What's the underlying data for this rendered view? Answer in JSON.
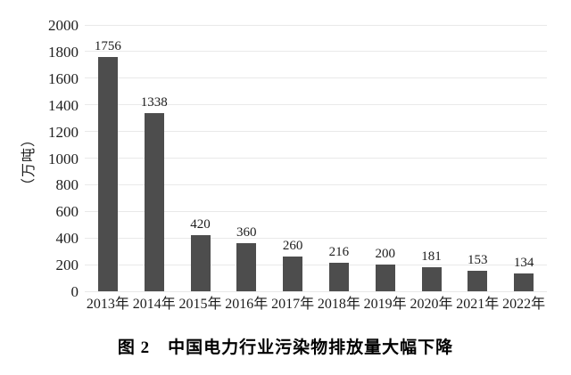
{
  "chart_data": {
    "type": "bar",
    "categories": [
      "2013年",
      "2014年",
      "2015年",
      "2016年",
      "2017年",
      "2018年",
      "2019年",
      "2020年",
      "2021年",
      "2022年"
    ],
    "values": [
      1756,
      1338,
      420,
      360,
      260,
      216,
      200,
      181,
      153,
      134
    ],
    "title": "图 2　中国电力行业污染物排放量大幅下降",
    "xlabel": "",
    "ylabel": "（万吨）",
    "ylim": [
      0,
      2000
    ],
    "ytick_step": 200,
    "grid": "horizontal",
    "legend": "none",
    "data_labels": true,
    "colors": {
      "bar": "#4d4d4d",
      "gridline": "#e9e9e9",
      "text": "#1c1c1c",
      "background": "#ffffff"
    }
  }
}
